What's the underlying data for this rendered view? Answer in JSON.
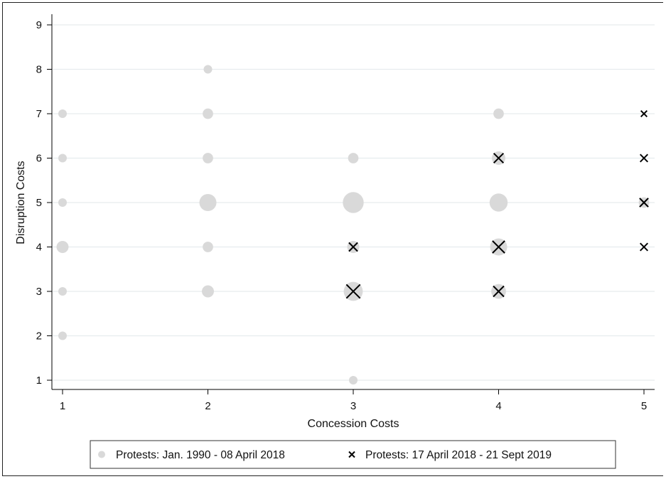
{
  "chart_data": {
    "type": "scatter",
    "xlabel": "Concession Costs",
    "ylabel": "Disruption Costs",
    "xlim": [
      1,
      5
    ],
    "ylim": [
      1,
      9
    ],
    "xticks": [
      "1",
      "2",
      "3",
      "4",
      "5"
    ],
    "yticks": [
      "1",
      "2",
      "3",
      "4",
      "5",
      "6",
      "7",
      "8",
      "9"
    ],
    "grid": true,
    "legend_position": "bottom",
    "series": [
      {
        "name": "Protests: Jan. 1990 - 08 April 2018",
        "marker": "circle",
        "color": "#d9d9d9",
        "points": [
          {
            "x": 1,
            "y": 7,
            "size": 1
          },
          {
            "x": 1,
            "y": 6,
            "size": 1
          },
          {
            "x": 1,
            "y": 5,
            "size": 1
          },
          {
            "x": 1,
            "y": 4,
            "size": 2
          },
          {
            "x": 1,
            "y": 3,
            "size": 1
          },
          {
            "x": 1,
            "y": 2,
            "size": 1
          },
          {
            "x": 2,
            "y": 8,
            "size": 1
          },
          {
            "x": 2,
            "y": 7,
            "size": 1.5
          },
          {
            "x": 2,
            "y": 6,
            "size": 1.5
          },
          {
            "x": 2,
            "y": 5,
            "size": 4
          },
          {
            "x": 2,
            "y": 4,
            "size": 1.5
          },
          {
            "x": 2,
            "y": 3,
            "size": 2
          },
          {
            "x": 3,
            "y": 6,
            "size": 1.5
          },
          {
            "x": 3,
            "y": 5,
            "size": 6
          },
          {
            "x": 3,
            "y": 4,
            "size": 2
          },
          {
            "x": 3,
            "y": 3,
            "size": 5
          },
          {
            "x": 3,
            "y": 1,
            "size": 1
          },
          {
            "x": 4,
            "y": 7,
            "size": 1.5
          },
          {
            "x": 4,
            "y": 6,
            "size": 2.5
          },
          {
            "x": 4,
            "y": 5,
            "size": 4.5
          },
          {
            "x": 4,
            "y": 4,
            "size": 4
          },
          {
            "x": 4,
            "y": 3,
            "size": 3
          },
          {
            "x": 5,
            "y": 5,
            "size": 1.5
          }
        ]
      },
      {
        "name": "Protests: 17 April 2018 - 21 Sept 2019",
        "marker": "x",
        "color": "#000000",
        "points": [
          {
            "x": 3,
            "y": 4,
            "size": 2
          },
          {
            "x": 3,
            "y": 3,
            "size": 5
          },
          {
            "x": 4,
            "y": 6,
            "size": 2.5
          },
          {
            "x": 4,
            "y": 4,
            "size": 4
          },
          {
            "x": 4,
            "y": 3,
            "size": 3
          },
          {
            "x": 5,
            "y": 7,
            "size": 1
          },
          {
            "x": 5,
            "y": 6,
            "size": 1.5
          },
          {
            "x": 5,
            "y": 5,
            "size": 2
          },
          {
            "x": 5,
            "y": 4,
            "size": 1.5
          }
        ]
      }
    ]
  },
  "colors": {
    "grid": "#e6ecee",
    "axis": "#000000",
    "circle_fill": "#d9d9d9",
    "cross": "#000000"
  }
}
